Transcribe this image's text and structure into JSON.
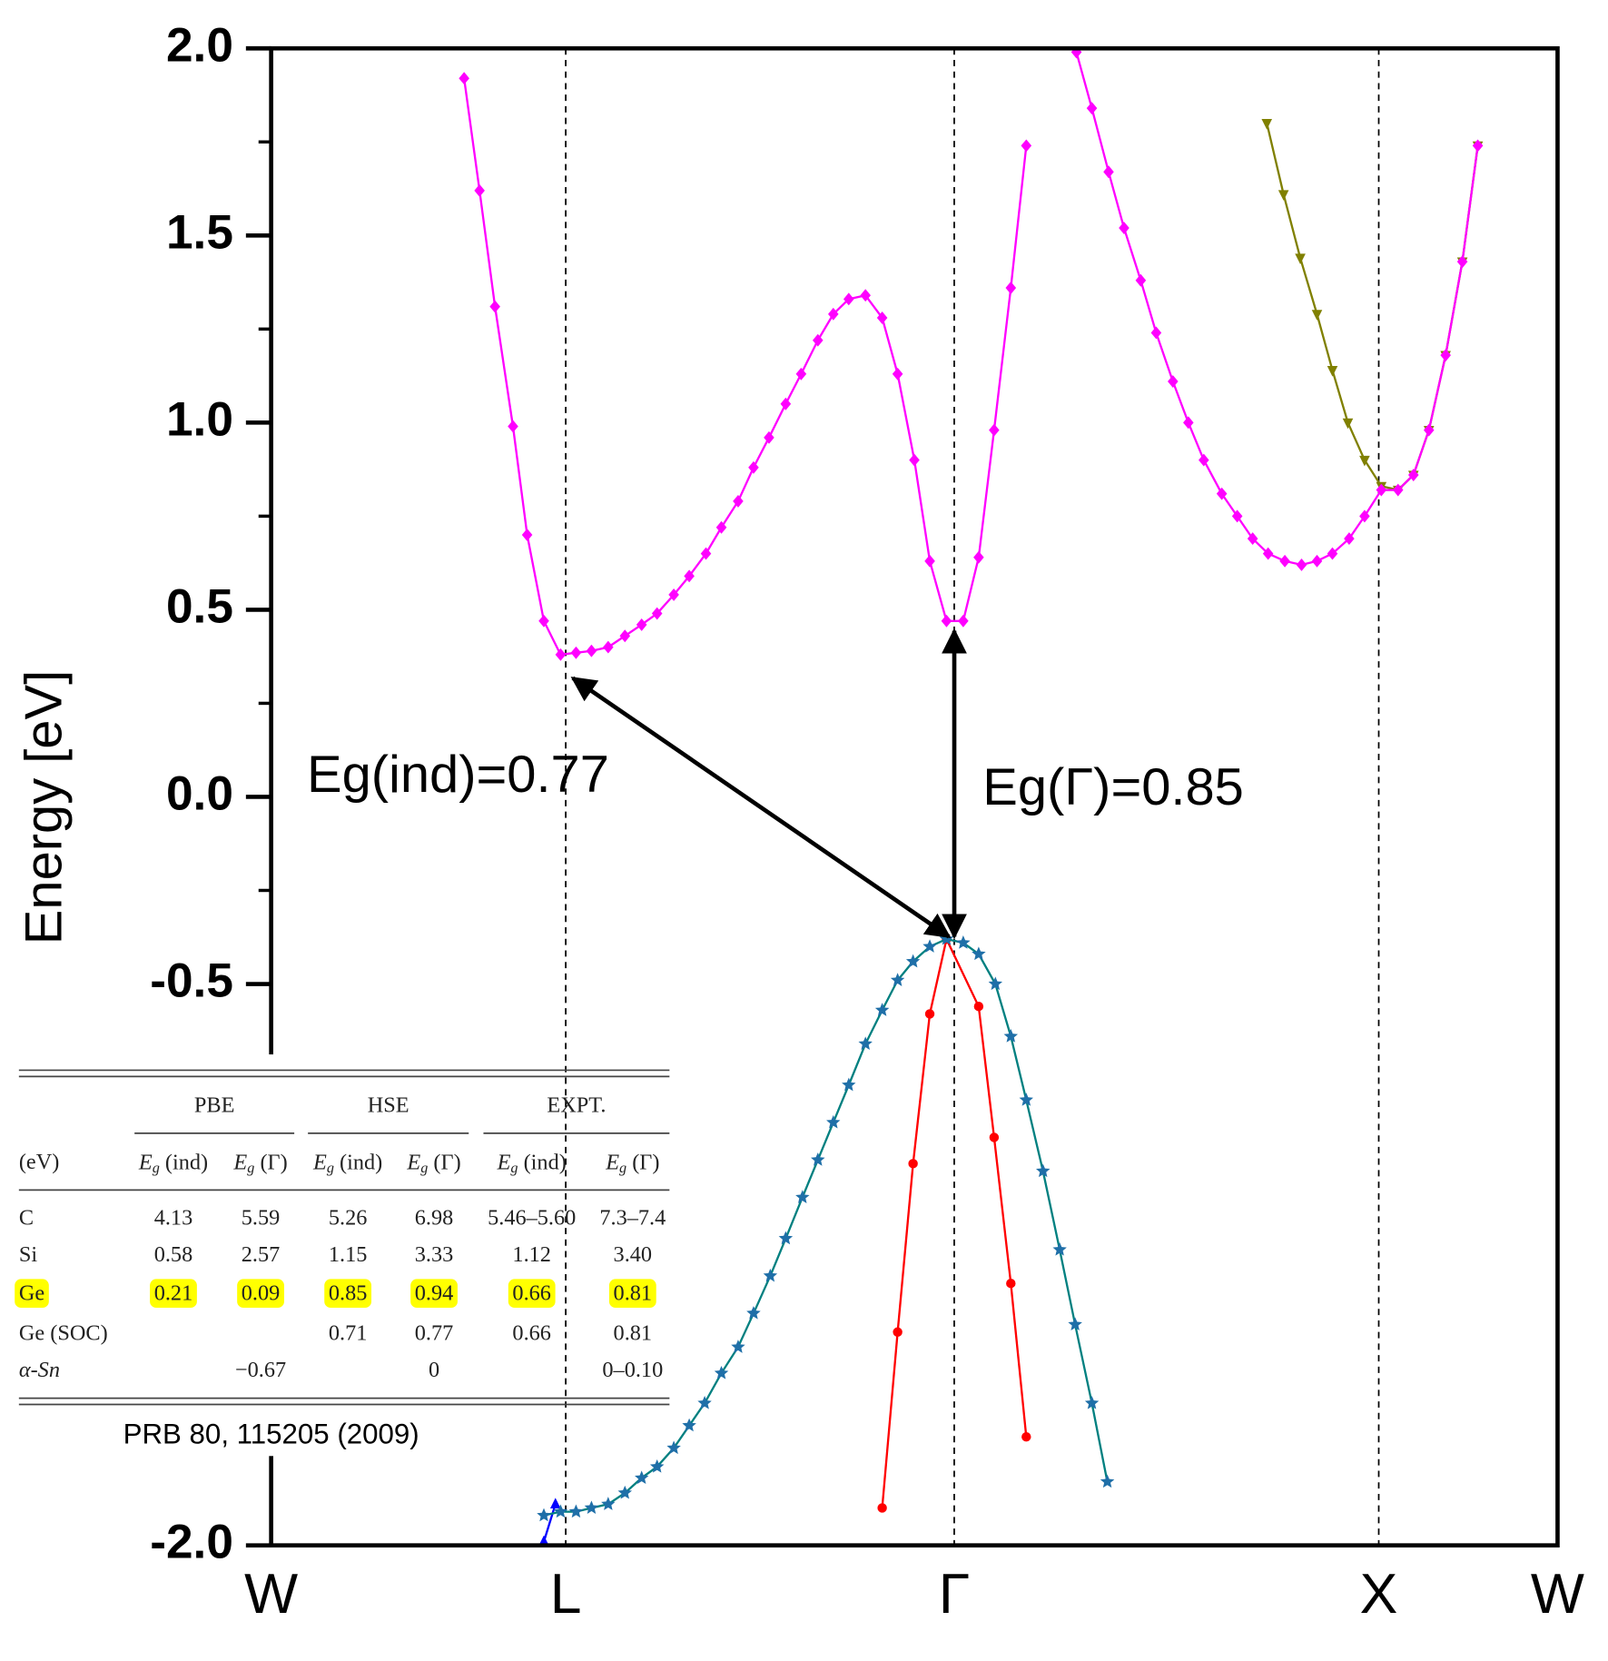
{
  "chart_data": {
    "type": "line",
    "y_label": "Energy [eV]",
    "ylim": [
      -2,
      2
    ],
    "yticks": [
      {
        "value": 2,
        "label": "2.0"
      },
      {
        "value": 1.5,
        "label": "1.5"
      },
      {
        "value": 1,
        "label": "1.0"
      },
      {
        "value": 0.5,
        "label": "0.5"
      },
      {
        "value": 0,
        "label": "0.0"
      },
      {
        "value": -0.5,
        "label": "-0.5"
      },
      {
        "value": -1,
        "label": "-1.0"
      },
      {
        "value": -1.5,
        "label": "-1.5"
      },
      {
        "value": -2,
        "label": "-2.0"
      }
    ],
    "yminor_ticks": [
      1.75,
      1.25,
      0.75,
      0.25,
      -0.25,
      -0.75,
      -1.25,
      -1.75
    ],
    "xlim": [
      0,
      1
    ],
    "xticks": [
      {
        "value": 0,
        "label": "W"
      },
      {
        "value": 0.229,
        "label": "L"
      },
      {
        "value": 0.531,
        "label": "Γ"
      },
      {
        "value": 0.861,
        "label": "X"
      },
      {
        "value": 1,
        "label": "W"
      }
    ],
    "grid": "dashed",
    "series": [
      {
        "color": "#ff0000",
        "marker": "circle",
        "marker_color": "#ff0000",
        "x": [
          0.475,
          0.487,
          0.499,
          0.512,
          0.525,
          0.55,
          0.562,
          0.575,
          0.587
        ],
        "values": [
          -1.9,
          -1.43,
          -0.98,
          -0.58,
          -0.38,
          -0.56,
          -0.91,
          -1.3,
          -1.71
        ]
      },
      {
        "color": "#0000ff",
        "marker": "triangle",
        "marker_color": "#0000ff",
        "x": [
          0.212,
          0.221
        ],
        "values": [
          -1.99,
          -1.89
        ]
      },
      {
        "color": "#008080",
        "marker": "star",
        "marker_color": "#1f6fa8",
        "x": [
          0.212,
          0.225,
          0.237,
          0.249,
          0.262,
          0.275,
          0.288,
          0.3,
          0.313,
          0.325,
          0.337,
          0.35,
          0.363,
          0.375,
          0.388,
          0.4,
          0.413,
          0.425,
          0.437,
          0.449,
          0.462,
          0.475,
          0.487,
          0.499,
          0.512,
          0.525,
          0.538,
          0.55,
          0.563,
          0.575,
          0.587,
          0.6,
          0.613,
          0.625,
          0.638,
          0.65
        ],
        "values": [
          -1.92,
          -1.91,
          -1.91,
          -1.9,
          -1.89,
          -1.86,
          -1.82,
          -1.79,
          -1.74,
          -1.68,
          -1.62,
          -1.54,
          -1.47,
          -1.38,
          -1.28,
          -1.18,
          -1.07,
          -0.97,
          -0.87,
          -0.77,
          -0.66,
          -0.57,
          -0.49,
          -0.44,
          -0.4,
          -0.38,
          -0.39,
          -0.42,
          -0.5,
          -0.64,
          -0.81,
          -1.0,
          -1.21,
          -1.41,
          -1.62,
          -1.83
        ]
      },
      {
        "color": "#808000",
        "marker": "triangle-down",
        "marker_color": "#808000",
        "x": [
          0.774,
          0.787,
          0.8,
          0.813,
          0.825,
          0.837,
          0.85,
          0.863,
          0.876,
          0.888,
          0.9,
          0.913,
          0.926,
          0.938
        ],
        "values": [
          1.8,
          1.61,
          1.44,
          1.29,
          1.14,
          1.0,
          0.9,
          0.83,
          0.82,
          0.86,
          0.98,
          1.18,
          1.43,
          1.74
        ]
      },
      {
        "color": "#ff00ff",
        "marker": "diamond",
        "marker_color": "#ff00ff",
        "x": [
          0.15,
          0.162,
          0.174,
          0.188,
          0.199,
          0.212,
          0.225,
          0.237,
          0.249,
          0.262,
          0.275,
          0.288,
          0.3,
          0.313,
          0.325,
          0.338,
          0.35,
          0.363,
          0.375,
          0.387,
          0.4,
          0.412,
          0.425,
          0.437,
          0.449,
          0.462,
          0.475,
          0.487,
          0.5,
          0.512,
          0.525,
          0.538,
          0.55,
          0.562,
          0.575,
          0.587,
          0.606,
          0.626,
          0.638,
          0.651,
          0.663,
          0.676,
          0.688,
          0.701,
          0.713,
          0.725,
          0.739,
          0.751,
          0.763,
          0.775,
          0.788,
          0.801,
          0.813,
          0.825,
          0.838,
          0.85,
          0.863,
          0.876,
          0.888,
          0.9,
          0.913,
          0.926,
          0.938
        ],
        "values": [
          1.92,
          1.62,
          1.31,
          0.99,
          0.7,
          0.47,
          0.38,
          0.385,
          0.39,
          0.4,
          0.43,
          0.46,
          0.49,
          0.54,
          0.59,
          0.65,
          0.72,
          0.79,
          0.88,
          0.96,
          1.05,
          1.13,
          1.22,
          1.29,
          1.33,
          1.34,
          1.28,
          1.13,
          0.9,
          0.63,
          0.47,
          0.47,
          0.64,
          0.98,
          1.36,
          1.74,
          null,
          1.99,
          1.84,
          1.67,
          1.52,
          1.38,
          1.24,
          1.11,
          1.0,
          0.9,
          0.81,
          0.75,
          0.69,
          0.65,
          0.63,
          0.62,
          0.63,
          0.65,
          0.69,
          0.75,
          0.82,
          0.82,
          0.86,
          0.98,
          1.18,
          1.43,
          1.74
        ]
      }
    ],
    "annotations": [
      {
        "text": "Eg(ind)=0.77"
      },
      {
        "text": "Eg(Γ)=0.85"
      }
    ]
  },
  "inset_table": {
    "groups": [
      "PBE",
      "HSE",
      "EXPT."
    ],
    "header": [
      "(eV)",
      "Eg (ind)",
      "Eg (Γ)",
      "Eg (ind)",
      "Eg (Γ)",
      "Eg (ind)",
      "Eg (Γ)"
    ],
    "rows": [
      [
        "C",
        "4.13",
        "5.59",
        "5.26",
        "6.98",
        "5.46–5.60",
        "7.3–7.4"
      ],
      [
        "Si",
        "0.58",
        "2.57",
        "1.15",
        "3.33",
        "1.12",
        "3.40"
      ],
      [
        "Ge",
        "0.21",
        "0.09",
        "0.85",
        "0.94",
        "0.66",
        "0.81"
      ],
      [
        "Ge (SOC)",
        null,
        null,
        "0.71",
        "0.77",
        "0.66",
        "0.81"
      ],
      [
        "α-Sn",
        null,
        "−0.67",
        null,
        "0",
        null,
        "0–0.10"
      ]
    ],
    "highlighted_row": 2,
    "highlight_color": "#ffff00",
    "caption": "PRB 80, 115205 (2009)"
  }
}
